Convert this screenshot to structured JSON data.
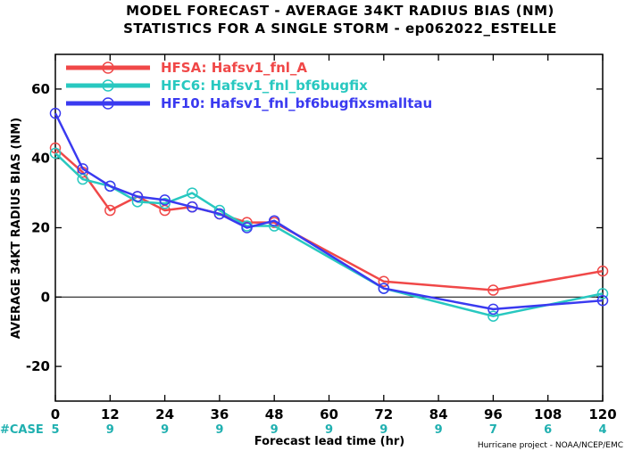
{
  "colors": {
    "hfsa": "#f04848",
    "hfc6": "#28c8c0",
    "hf10": "#3a3af0",
    "case": "#20b0b0"
  },
  "chart_data": {
    "type": "line",
    "title": [
      "MODEL FORECAST - AVERAGE 34KT RADIUS BIAS (NM)",
      "STATISTICS FOR A SINGLE STORM - ep062022_ESTELLE"
    ],
    "xlabel": "Forecast lead time (hr)",
    "ylabel": "AVERAGE 34KT RADIUS BIAS (NM)",
    "xlim": [
      0,
      120
    ],
    "ylim": [
      -30,
      70
    ],
    "xticks": [
      0,
      12,
      24,
      36,
      48,
      60,
      72,
      84,
      96,
      108,
      120
    ],
    "yticks": [
      -20,
      0,
      20,
      40,
      60
    ],
    "zero_line": true,
    "legend_position": "top-left",
    "series": [
      {
        "name": "HFSA:  Hafsv1_fnl_A",
        "color": "#f04848",
        "x": [
          0,
          6,
          12,
          18,
          24,
          30,
          36,
          42,
          48,
          72,
          96,
          120
        ],
        "y": [
          43,
          36,
          25,
          29,
          25,
          26,
          24,
          21.5,
          21.5,
          4.5,
          2,
          7.5
        ]
      },
      {
        "name": "HFC6:  Hafsv1_fnl_bf6bugfix",
        "color": "#28c8c0",
        "x": [
          0,
          6,
          12,
          18,
          24,
          30,
          36,
          42,
          48,
          72,
          96,
          120
        ],
        "y": [
          41.5,
          34,
          32,
          27.5,
          27,
          30,
          25,
          20.5,
          20.5,
          2.5,
          -5.5,
          1
        ]
      },
      {
        "name": "HF10:  Hafsv1_fnl_bf6bugfixsmalltau",
        "color": "#3a3af0",
        "x": [
          0,
          6,
          12,
          18,
          24,
          30,
          36,
          42,
          48,
          72,
          96,
          120
        ],
        "y": [
          53,
          37,
          32,
          29,
          28,
          26,
          24,
          20,
          22,
          2.5,
          -3.5,
          -1
        ]
      }
    ],
    "case_label": "#CASE",
    "case_counts": [
      {
        "x": 0,
        "n": "5"
      },
      {
        "x": 12,
        "n": "9"
      },
      {
        "x": 24,
        "n": "9"
      },
      {
        "x": 36,
        "n": "9"
      },
      {
        "x": 48,
        "n": "9"
      },
      {
        "x": 60,
        "n": "9"
      },
      {
        "x": 72,
        "n": "9"
      },
      {
        "x": 84,
        "n": "9"
      },
      {
        "x": 96,
        "n": "7"
      },
      {
        "x": 108,
        "n": "6"
      },
      {
        "x": 120,
        "n": "4"
      }
    ],
    "credit": "Hurricane project - NOAA/NCEP/EMC"
  }
}
